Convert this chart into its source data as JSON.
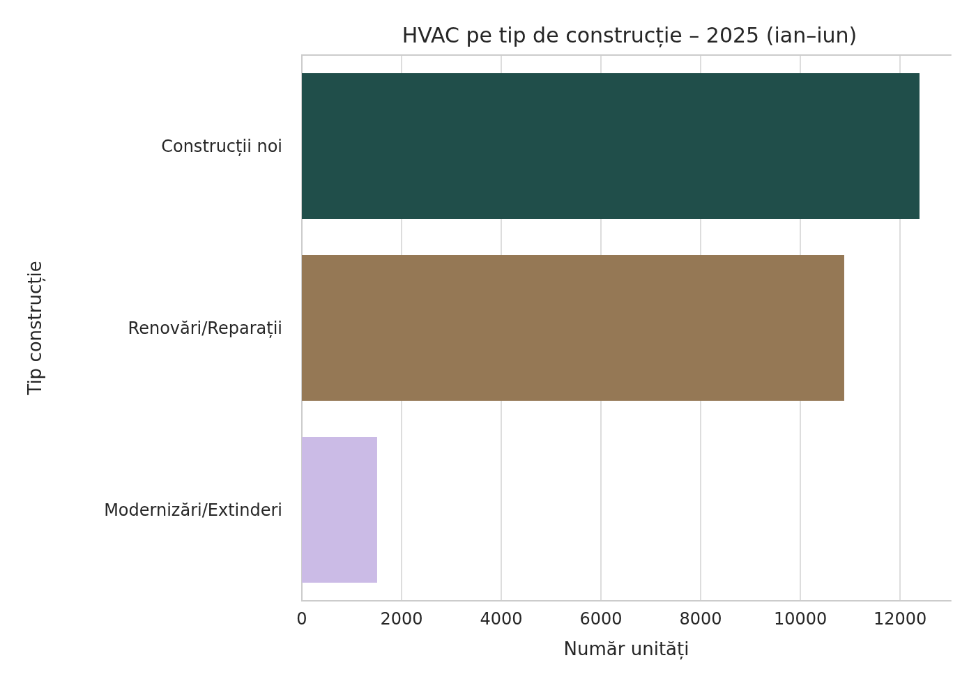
{
  "chart_data": {
    "type": "bar",
    "orientation": "horizontal",
    "title": "HVAC pe tip de construcție – 2025 (ian–iun)",
    "xlabel": "Număr unități",
    "ylabel": "Tip construcție",
    "categories": [
      "Construcții noi",
      "Renovări/Reparații",
      "Modernizări/Extinderi"
    ],
    "values": [
      12390,
      10880,
      1510
    ],
    "colors": [
      "#204e4a",
      "#957855",
      "#cbbbe6"
    ],
    "xlim": [
      0,
      13020
    ],
    "xticks": [
      0,
      2000,
      4000,
      6000,
      8000,
      10000,
      12000
    ],
    "grid": "x"
  }
}
